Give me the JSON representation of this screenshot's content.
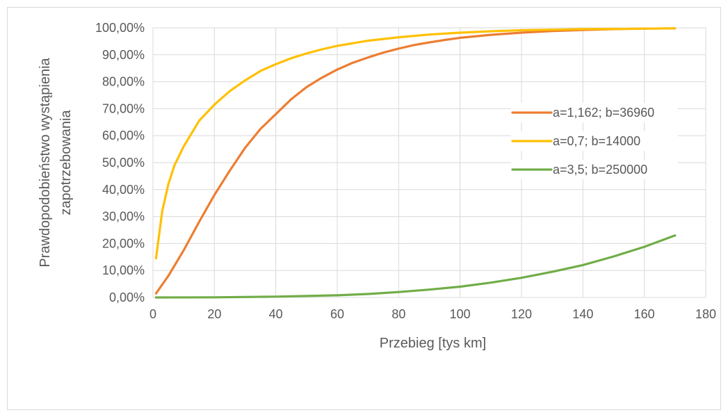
{
  "chart_data": {
    "type": "line",
    "title": "",
    "xlabel": "Przebieg [tys km]",
    "ylabel_lines": [
      "Prawdopodobieństwo wystąpienia",
      "zapotrzebowania"
    ],
    "xlim": [
      0,
      180
    ],
    "ylim": [
      0,
      100
    ],
    "x_ticks": [
      0,
      20,
      40,
      60,
      80,
      100,
      120,
      140,
      160,
      180
    ],
    "x_tick_labels": [
      "0",
      "20",
      "40",
      "60",
      "80",
      "100",
      "120",
      "140",
      "160",
      "180"
    ],
    "y_ticks": [
      0,
      10,
      20,
      30,
      40,
      50,
      60,
      70,
      80,
      90,
      100
    ],
    "y_tick_labels": [
      "0,00%",
      "10,00%",
      "20,00%",
      "30,00%",
      "40,00%",
      "50,00%",
      "60,00%",
      "70,00%",
      "80,00%",
      "90,00%",
      "100,00%"
    ],
    "grid": "vertical-and-horizontal",
    "legend_position": "right",
    "series": [
      {
        "name": "a=1,162; b=36960",
        "color": "#ED7D31",
        "x": [
          1,
          5,
          10,
          15,
          20,
          25,
          30,
          35,
          40,
          45,
          50,
          55,
          60,
          65,
          70,
          75,
          80,
          85,
          90,
          95,
          100,
          110,
          120,
          130,
          140,
          150,
          160,
          170
        ],
        "y": [
          1.5,
          8,
          17.5,
          28,
          38,
          47,
          55.5,
          62.5,
          68,
          73.5,
          78,
          81.5,
          84.5,
          87,
          89,
          90.8,
          92.3,
          93.6,
          94.6,
          95.5,
          96.3,
          97.4,
          98.2,
          98.8,
          99.2,
          99.5,
          99.7,
          99.8
        ]
      },
      {
        "name": "a=0,7; b=14000",
        "color": "#FFC000",
        "x": [
          1,
          3,
          5,
          7,
          10,
          15,
          20,
          25,
          30,
          35,
          40,
          45,
          50,
          55,
          60,
          70,
          80,
          90,
          100,
          110,
          120,
          130,
          140,
          150,
          160,
          170
        ],
        "y": [
          14.5,
          32,
          42,
          49,
          56,
          65.5,
          71.5,
          76.5,
          80.5,
          84,
          86.5,
          88.7,
          90.5,
          92,
          93.3,
          95.2,
          96.5,
          97.5,
          98.2,
          98.7,
          99.1,
          99.3,
          99.5,
          99.6,
          99.7,
          99.8
        ]
      },
      {
        "name": "a=3,5; b=250000",
        "color": "#70AD47",
        "x": [
          1,
          20,
          40,
          60,
          70,
          80,
          90,
          100,
          110,
          120,
          130,
          140,
          150,
          160,
          170
        ],
        "y": [
          0,
          0.05,
          0.3,
          0.8,
          1.3,
          2.0,
          2.9,
          4.0,
          5.5,
          7.3,
          9.5,
          12.0,
          15.2,
          18.8,
          23.0
        ]
      }
    ]
  }
}
